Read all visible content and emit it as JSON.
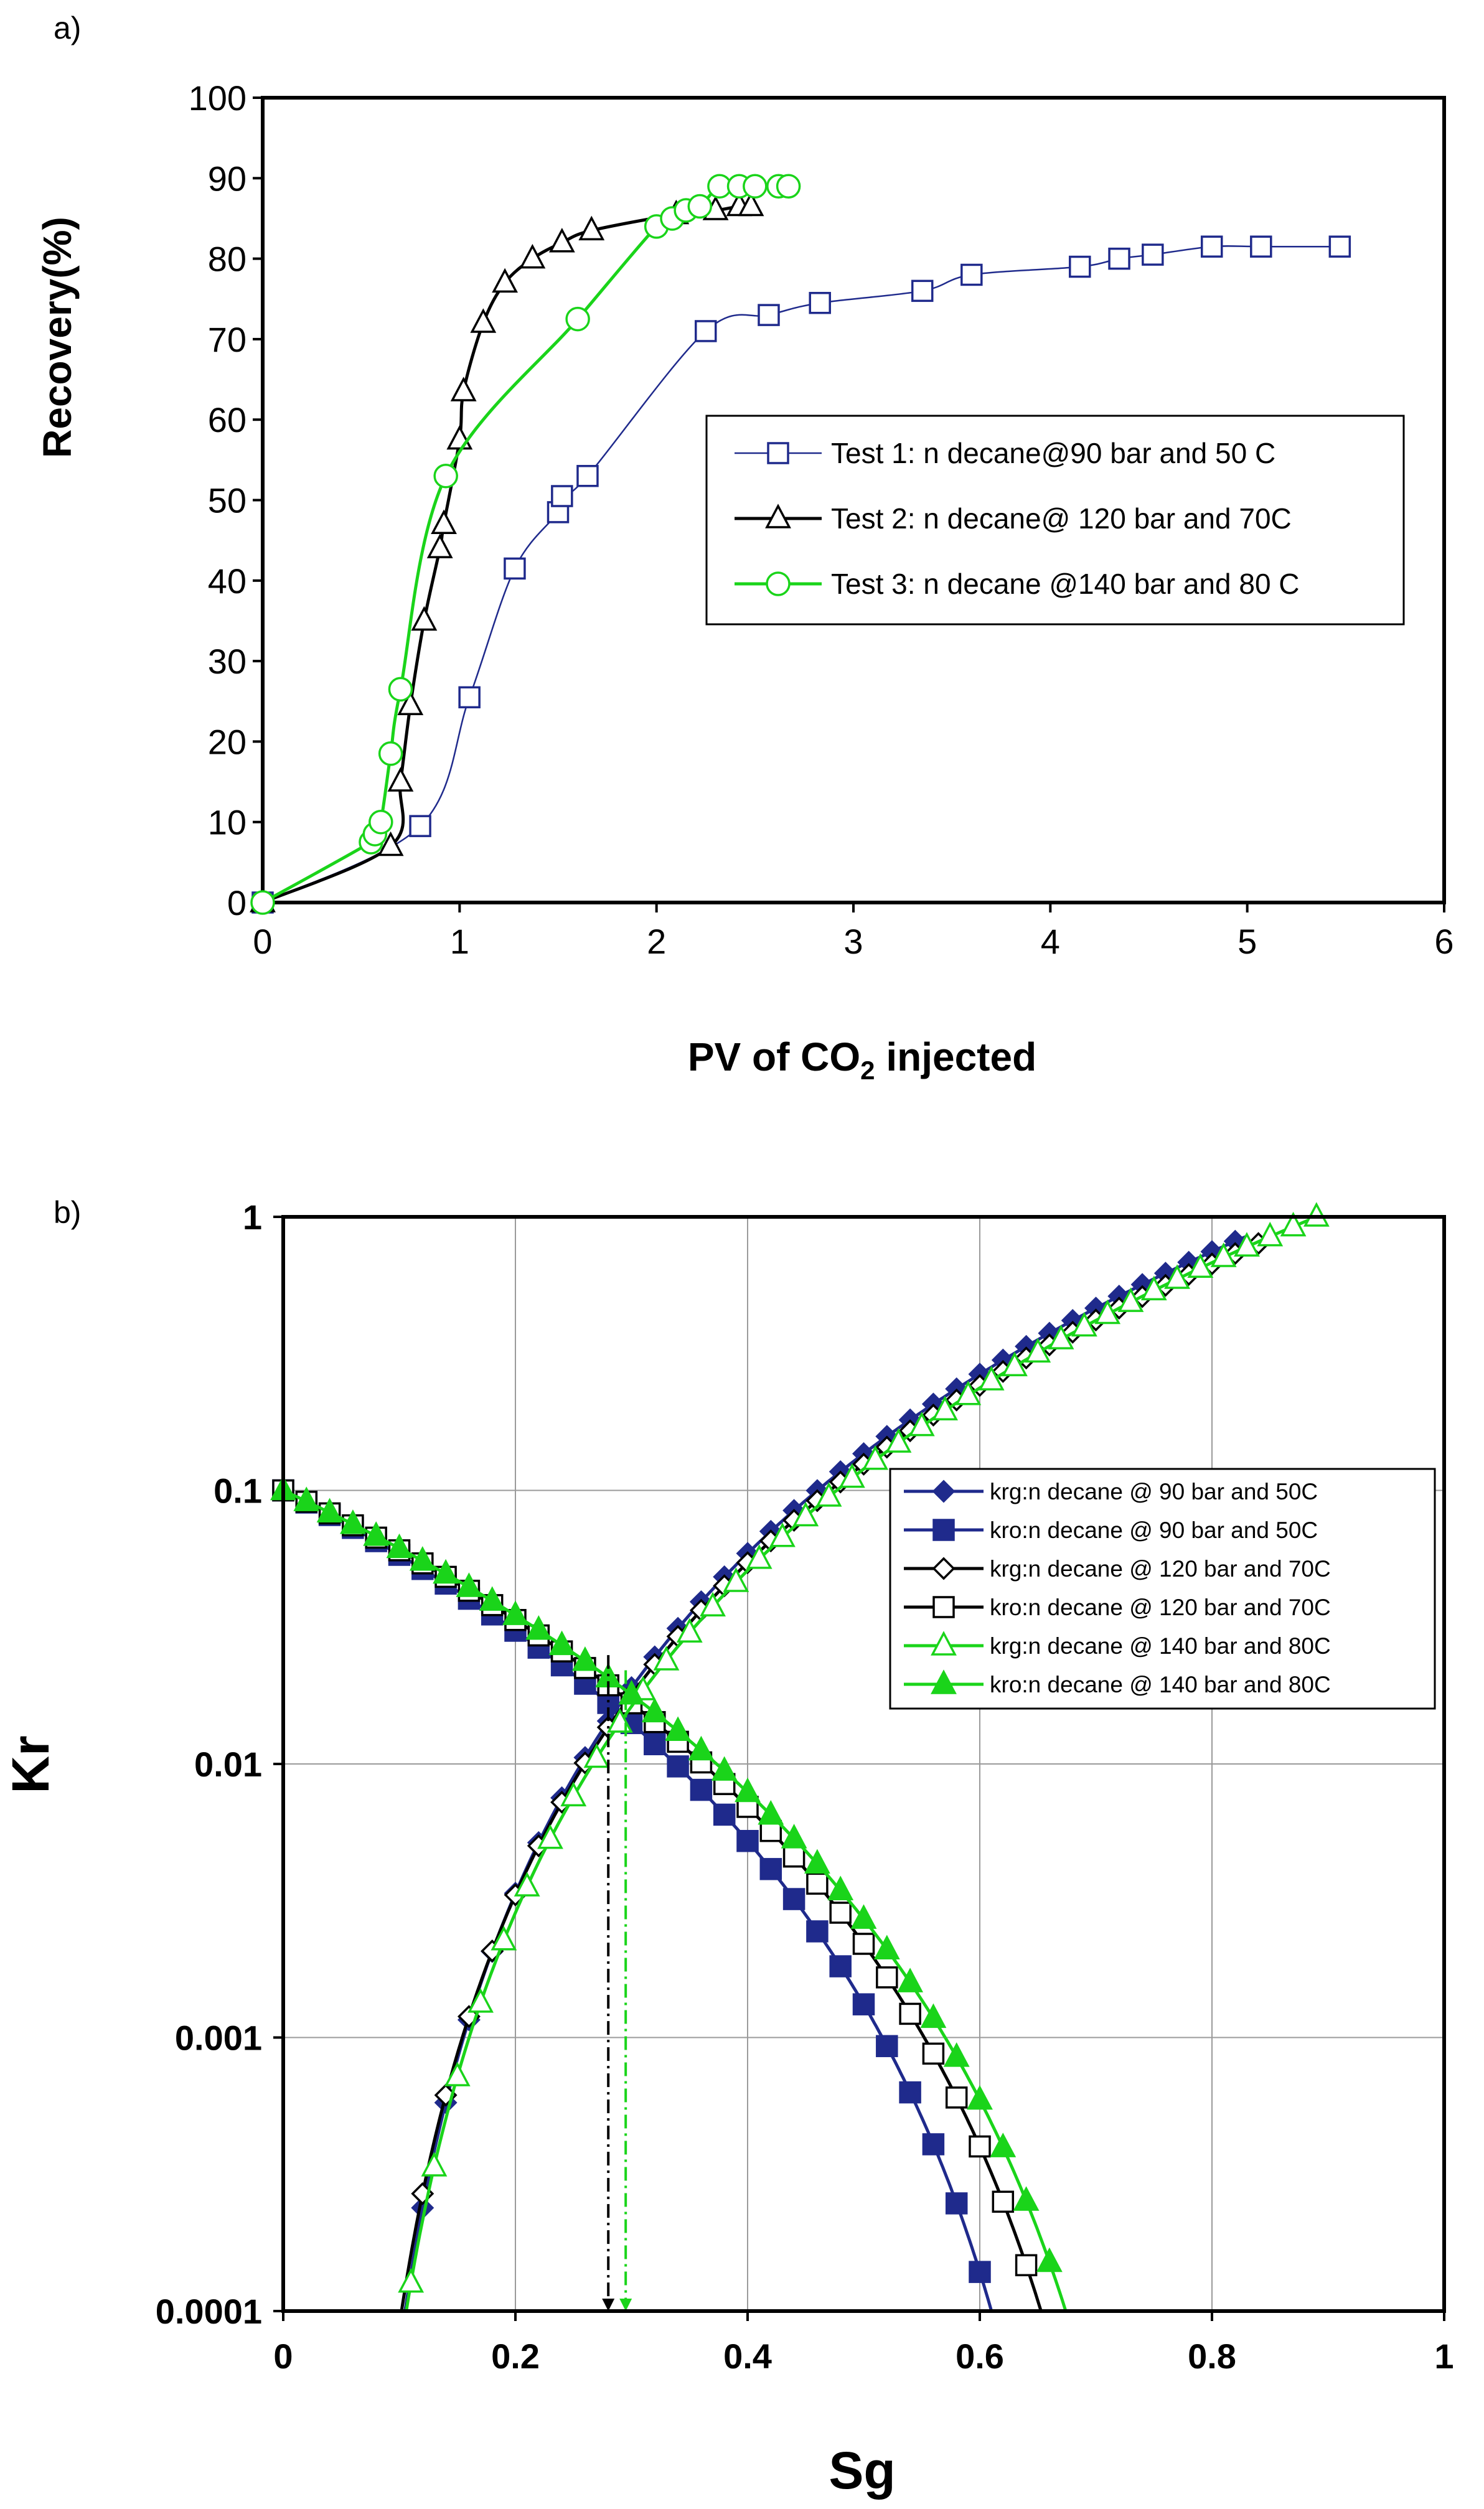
{
  "chart_data": [
    {
      "id": "a",
      "panel_label": "a)",
      "type": "line",
      "title": "",
      "xlabel": "PV of CO",
      "xlabel_sub": "2",
      "xlabel_suffix": " injected",
      "ylabel": "Recovery(%)",
      "xlim": [
        0,
        6
      ],
      "ylim": [
        0,
        100
      ],
      "xticks": [
        "0",
        "1",
        "2",
        "3",
        "4",
        "5",
        "6"
      ],
      "yticks": [
        "0",
        "10",
        "20",
        "30",
        "40",
        "50",
        "60",
        "70",
        "80",
        "90",
        "100"
      ],
      "grid": false,
      "legend_position": "middle-right",
      "series": [
        {
          "name": "Test 1: n decane@90 bar and 50 C",
          "color": "#1f2a8c",
          "marker": "square",
          "x": [
            0,
            0.8,
            1.05,
            1.28,
            1.5,
            1.52,
            1.65,
            2.25,
            2.57,
            2.83,
            3.35,
            3.6,
            4.15,
            4.35,
            4.52,
            4.82,
            5.07,
            5.47
          ],
          "y": [
            0,
            9.5,
            25.5,
            41.5,
            48.5,
            50.5,
            53,
            71,
            73,
            74.5,
            76,
            78,
            79,
            80,
            80.5,
            81.5,
            81.5,
            81.5
          ]
        },
        {
          "name": "Test 2: n decane@ 120 bar and 70C",
          "color": "#000000",
          "marker": "triangle",
          "x": [
            0,
            0.65,
            0.7,
            0.75,
            0.82,
            0.9,
            0.92,
            1.0,
            1.02,
            1.12,
            1.23,
            1.37,
            1.52,
            1.67,
            2.1,
            2.3,
            2.42,
            2.48
          ],
          "y": [
            0,
            7,
            15,
            24.5,
            35,
            44,
            47,
            57.5,
            63.5,
            72,
            77,
            80,
            82,
            83.5,
            85.5,
            86,
            86.5,
            86.5
          ]
        },
        {
          "name": "Test 3: n decane @140 bar and 80 C",
          "color": "#1ad41a",
          "marker": "circle",
          "x": [
            0,
            0.55,
            0.57,
            0.6,
            0.65,
            0.7,
            0.93,
            1.6,
            2.0,
            2.08,
            2.15,
            2.22,
            2.32,
            2.42,
            2.5,
            2.62,
            2.67
          ],
          "y": [
            0,
            7.5,
            8.5,
            10,
            18.5,
            26.5,
            53,
            72.5,
            84,
            85,
            86,
            86.5,
            89,
            89,
            89,
            89,
            89
          ]
        }
      ]
    },
    {
      "id": "b",
      "panel_label": "b)",
      "type": "line",
      "title": "",
      "xlabel": "Sg",
      "ylabel": "Kr",
      "yscale": "log",
      "xlim": [
        0,
        1
      ],
      "ylim": [
        0.0001,
        1
      ],
      "xticks": [
        "0",
        "0.2",
        "0.4",
        "0.6",
        "0.8",
        "1"
      ],
      "yticks": [
        "0.0001",
        "0.001",
        "0.01",
        "0.1",
        "1"
      ],
      "grid": true,
      "legend_position": "middle-right",
      "series": [
        {
          "name": "krg:n decane @ 90  bar  and 50C",
          "color": "#1f2a8c",
          "marker": "diamond-filled",
          "kind": "krg",
          "swc": 0.055,
          "snorm_end": 0.83,
          "kmax": 0.85,
          "exp": 3.3,
          "xstart": 0.06,
          "xend": 0.83
        },
        {
          "name": "kro:n decane @  90  bar  and 50C",
          "color": "#1f2a8c",
          "marker": "square-filled",
          "kind": "kro",
          "k0": 0.1,
          "send": 0.715,
          "exp": 3.6,
          "xstart": 0.0,
          "xend": 0.7
        },
        {
          "name": "krg:n decane  @  120 bar  and 70C",
          "color": "#000000",
          "marker": "diamond-open",
          "kind": "krg",
          "swc": 0.05,
          "snorm_end": 0.855,
          "kmax": 0.85,
          "exp": 3.3,
          "xstart": 0.06,
          "xend": 0.855
        },
        {
          "name": "kro:n decane @  120 bar and 70C",
          "color": "#000000",
          "marker": "square-open",
          "kind": "kro",
          "k0": 0.1,
          "send": 0.765,
          "exp": 3.6,
          "xstart": 0.0,
          "xend": 0.75
        },
        {
          "name": "krg:n decane @ 140 bar  and 80C",
          "color": "#1ad41a",
          "marker": "triangle-open",
          "kind": "krg",
          "swc": 0.05,
          "snorm_end": 0.89,
          "kmax": 1.0,
          "exp": 3.4,
          "xstart": 0.07,
          "xend": 0.89
        },
        {
          "name": "kro:n decane @  140 bar  and 80C",
          "color": "#1ad41a",
          "marker": "triangle-filled",
          "kind": "kro",
          "k0": 0.1,
          "send": 0.79,
          "exp": 3.6,
          "xstart": 0.0,
          "xend": 0.77
        }
      ],
      "annotations": [
        {
          "type": "dash-dot-drop",
          "x": 0.28,
          "y_from": 0.025,
          "color": "#000000"
        },
        {
          "type": "dash-dot-drop",
          "x": 0.295,
          "y_from": 0.022,
          "color": "#1ad41a"
        }
      ]
    }
  ]
}
